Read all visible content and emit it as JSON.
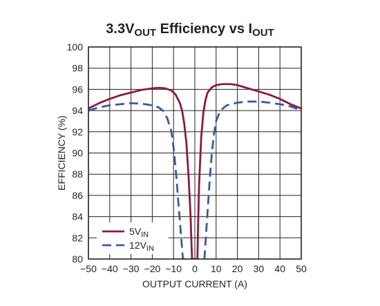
{
  "chart_data": {
    "type": "line",
    "title": {
      "main": "3.3V",
      "sub1": "OUT",
      "mid": " Efficiency vs I",
      "sub2": "OUT"
    },
    "xlabel": "OUTPUT CURRENT (A)",
    "ylabel": "EFFICIENCY (%)",
    "xlim": [
      -50,
      50
    ],
    "ylim": [
      80,
      100
    ],
    "x_ticks": [
      -50,
      -40,
      -30,
      -20,
      -10,
      0,
      10,
      20,
      30,
      40,
      50
    ],
    "x_tick_labels": [
      "−50",
      "−40",
      "−30",
      "−20",
      "−10",
      "0",
      "10",
      "20",
      "30",
      "40",
      "50"
    ],
    "y_ticks": [
      80,
      82,
      84,
      86,
      88,
      90,
      92,
      94,
      96,
      98,
      100
    ],
    "y_tick_labels": [
      "80",
      "82",
      "84",
      "86",
      "88",
      "90",
      "92",
      "94",
      "96",
      "98",
      "100"
    ],
    "grid": true,
    "legend_position": "bottom-left",
    "series": [
      {
        "name_main": "5V",
        "name_sub": "IN",
        "color": "#8b1a3a",
        "dash": "solid",
        "points": [
          [
            -50,
            94.2
          ],
          [
            -45,
            94.7
          ],
          [
            -40,
            95.1
          ],
          [
            -35,
            95.45
          ],
          [
            -30,
            95.7
          ],
          [
            -25,
            95.95
          ],
          [
            -20,
            96.1
          ],
          [
            -17,
            96.15
          ],
          [
            -14,
            96.1
          ],
          [
            -11,
            95.9
          ],
          [
            -9,
            95.5
          ],
          [
            -7,
            94.7
          ],
          [
            -6,
            94.0
          ],
          [
            -5,
            92.8
          ],
          [
            -4,
            91.0
          ],
          [
            -3,
            88.0
          ],
          [
            -2,
            84.0
          ],
          [
            -1.5,
            81.0
          ],
          [
            -1.3,
            80.0
          ],
          [
            1.2,
            80.0
          ],
          [
            1.5,
            83.0
          ],
          [
            2,
            87.0
          ],
          [
            3,
            91.5
          ],
          [
            4,
            93.8
          ],
          [
            5,
            95.0
          ],
          [
            6,
            95.7
          ],
          [
            8,
            96.2
          ],
          [
            10,
            96.4
          ],
          [
            13,
            96.5
          ],
          [
            17,
            96.5
          ],
          [
            20,
            96.4
          ],
          [
            25,
            96.1
          ],
          [
            30,
            95.8
          ],
          [
            35,
            95.5
          ],
          [
            40,
            95.1
          ],
          [
            45,
            94.6
          ],
          [
            50,
            94.2
          ]
        ]
      },
      {
        "name_main": "12V",
        "name_sub": "IN",
        "color": "#3b5a9a",
        "dash": "dashed",
        "points": [
          [
            -50,
            94.0
          ],
          [
            -45,
            94.3
          ],
          [
            -40,
            94.5
          ],
          [
            -35,
            94.6
          ],
          [
            -30,
            94.7
          ],
          [
            -25,
            94.65
          ],
          [
            -20,
            94.5
          ],
          [
            -17,
            94.3
          ],
          [
            -15,
            94.0
          ],
          [
            -13,
            93.3
          ],
          [
            -11,
            92.0
          ],
          [
            -10,
            90.5
          ],
          [
            -9,
            88.5
          ],
          [
            -8,
            86.0
          ],
          [
            -7,
            83.5
          ],
          [
            -6,
            81.0
          ],
          [
            -5.6,
            80.0
          ],
          [
            4.5,
            80.0
          ],
          [
            5,
            81.5
          ],
          [
            6,
            84.5
          ],
          [
            7,
            87.5
          ],
          [
            8,
            90.0
          ],
          [
            9,
            91.8
          ],
          [
            10,
            93.0
          ],
          [
            12,
            94.0
          ],
          [
            15,
            94.5
          ],
          [
            20,
            94.75
          ],
          [
            25,
            94.85
          ],
          [
            30,
            94.85
          ],
          [
            35,
            94.75
          ],
          [
            40,
            94.6
          ],
          [
            45,
            94.4
          ],
          [
            50,
            94.0
          ]
        ]
      }
    ]
  }
}
